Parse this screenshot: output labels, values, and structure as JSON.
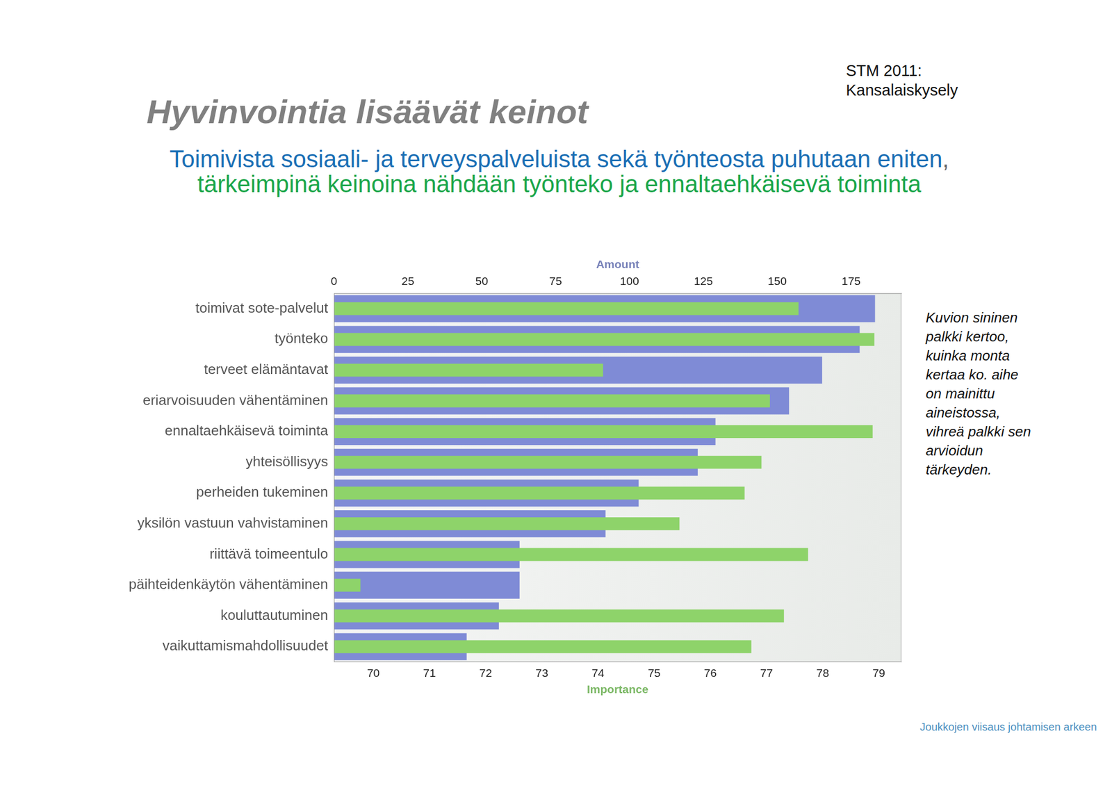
{
  "chart_data": {
    "type": "bar",
    "orientation": "horizontal",
    "title": "Hyvinvointia lisäävät keinot",
    "subtitle": [
      {
        "text": "Toimivista sosiaali- ja terveyspalveluista sekä työnteosta puhutaan eniten",
        "color": "#1a6fb5"
      },
      {
        "text": ",",
        "color": "#666666"
      },
      {
        "text": " tärkeimpinä keinoina nähdään työnteko ja ennaltaehkäisevä toiminta",
        "color": "#1aa64a"
      }
    ],
    "source": "STM 2011: Kansalaiskysely",
    "annotation": "Kuvion sininen palkki kertoo, kuinka monta kertaa ko. aihe on mainittu aineistossa, vihreä palkki sen arvioidun tärkeyden.",
    "footer": "Joukkojen viisaus johtamisen arkeen",
    "categories": [
      "toimivat sote-palvelut",
      "työnteko",
      "terveet elämäntavat",
      "eriarvoisuuden vähentäminen",
      "ennaltaehkäisevä toiminta",
      "yhteisöllisyys",
      "perheiden tukeminen",
      "yksilön vastuun vahvistaminen",
      "riittävä toimeentulo",
      "päihteidenkäytön vähentäminen",
      "kouluttautuminen",
      "vaikuttamismahdollisuudet"
    ],
    "x_label": "Amount",
    "xlim": [
      0,
      192
    ],
    "xticks": [
      0,
      25,
      50,
      75,
      100,
      125,
      150,
      175
    ],
    "x2_label": "Importance",
    "x2lim": [
      69.3,
      79.4
    ],
    "x2ticks": [
      70,
      71,
      72,
      73,
      74,
      75,
      76,
      77,
      78,
      79
    ],
    "grid": false,
    "legend": false,
    "series": [
      {
        "color": "#7f8bd6",
        "axis": "x",
        "values": [
          183.1,
          177.9,
          165.2,
          154.0,
          129.1,
          123.1,
          103.1,
          91.9,
          62.8,
          62.8,
          55.8,
          44.9
        ]
      },
      {
        "color": "#8ed36a",
        "axis": "x2",
        "values": [
          77.57,
          78.92,
          74.09,
          77.06,
          78.89,
          76.91,
          76.61,
          75.45,
          77.74,
          69.77,
          77.31,
          76.73
        ]
      }
    ]
  }
}
